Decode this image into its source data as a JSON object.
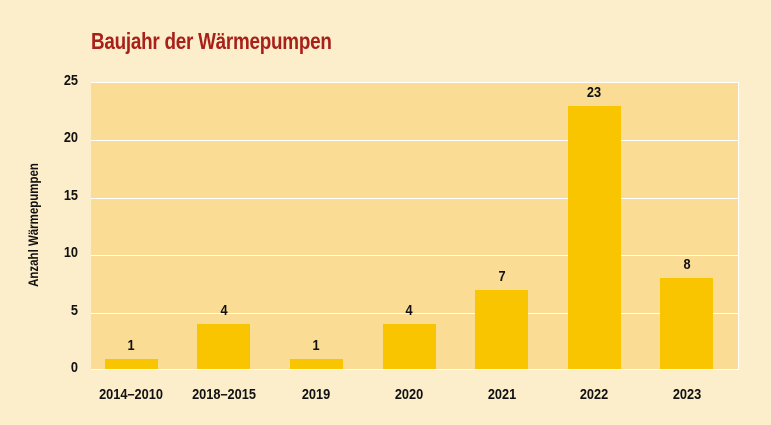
{
  "title": "Baujahr der Wärmepumpen",
  "colors": {
    "background": "#fcedcb",
    "plot_background": "#fbdc94",
    "bar": "#f9c400",
    "title": "#a8201a"
  },
  "chart_data": {
    "type": "bar",
    "title": "Baujahr der Wärmepumpen",
    "xlabel": "",
    "ylabel": "Anzahl Wärmepumpen",
    "categories": [
      "2014–2010",
      "2018–2015",
      "2019",
      "2020",
      "2021",
      "2022",
      "2023"
    ],
    "values": [
      1,
      4,
      1,
      4,
      7,
      23,
      8
    ],
    "ylim": [
      0,
      25
    ],
    "yticks": [
      0,
      5,
      10,
      15,
      20,
      25
    ],
    "grid": true,
    "data_labels": true,
    "legend": null
  }
}
